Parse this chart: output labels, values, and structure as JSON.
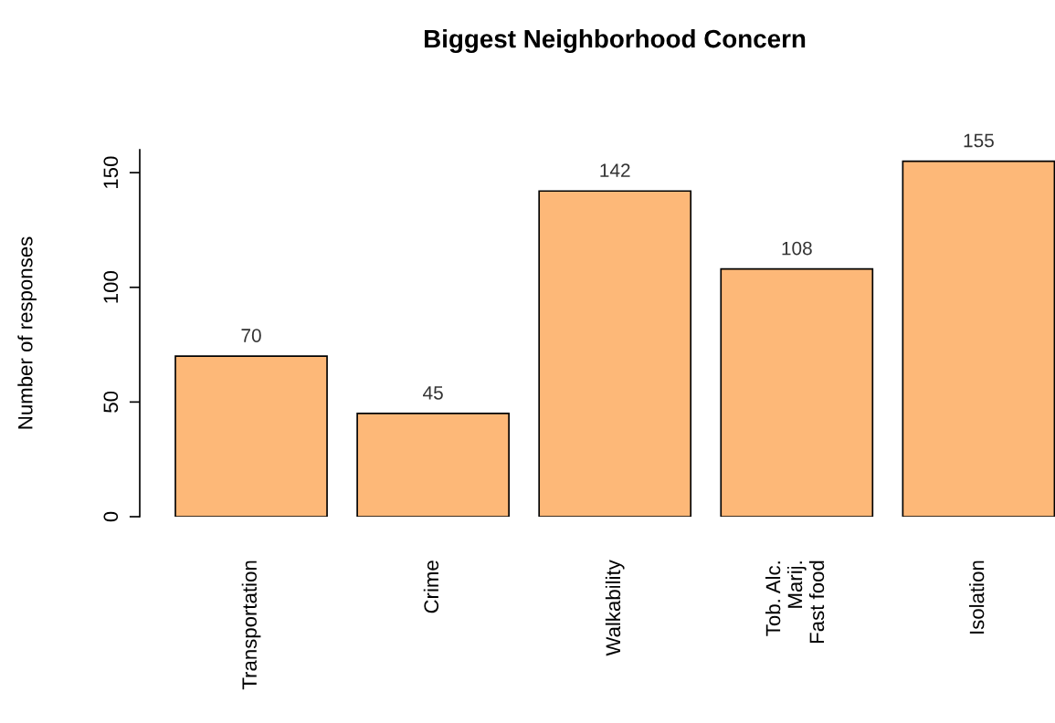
{
  "chart_data": {
    "type": "bar",
    "title": "Biggest Neighborhood Concern",
    "ylabel": "Number of responses",
    "categories": [
      "Transportation",
      "Crime",
      "Walkability",
      "Tob. Alc.\nMarij.\nFast food",
      "Isolation"
    ],
    "values": [
      70,
      45,
      142,
      108,
      155
    ],
    "color": "#fdb878",
    "ylim": [
      0,
      160
    ],
    "yticks": [
      0,
      50,
      100,
      150
    ],
    "data_labels": true,
    "grid": false,
    "legend": false
  }
}
